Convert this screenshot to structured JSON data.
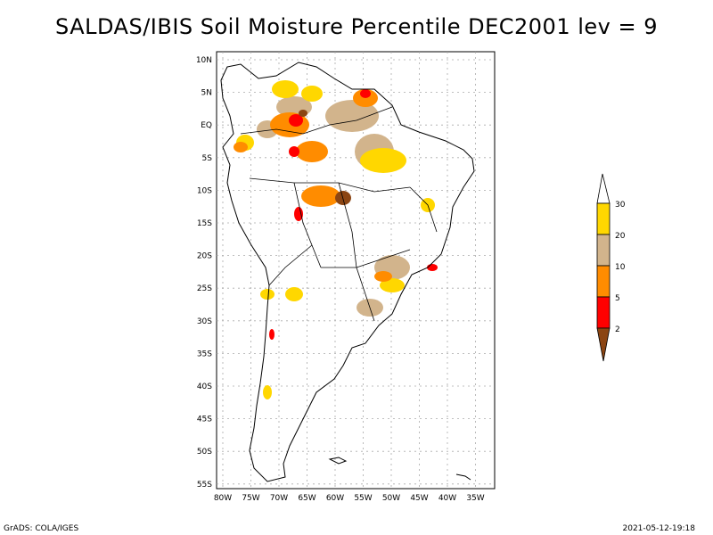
{
  "title": "SALDAS/IBIS Soil Moisture Percentile DEC2001 lev = 9",
  "footer": {
    "left": "GrADS: COLA/IGES",
    "right": "2021-05-12-19:18"
  },
  "axes": {
    "lat_labels": [
      "10N",
      "5N",
      "EQ",
      "5S",
      "10S",
      "15S",
      "20S",
      "25S",
      "30S",
      "35S",
      "40S",
      "45S",
      "50S",
      "55S"
    ],
    "lon_labels": [
      "80W",
      "75W",
      "70W",
      "65W",
      "60W",
      "55W",
      "50W",
      "45W",
      "40W",
      "35W"
    ],
    "grid": true
  },
  "colorbar": {
    "labels": [
      "30",
      "20",
      "10",
      "5",
      "2"
    ],
    "colors": [
      "#ffffff",
      "#ffd700",
      "#d2b48c",
      "#ff8c00",
      "#ff0000",
      "#8b4513"
    ]
  },
  "colors": {
    "brown_lt2": "#8b4513",
    "red_2_5": "#ff0000",
    "orange_5_10": "#ff8c00",
    "tan_10_20": "#d2b48c",
    "gold_20_30": "#ffd700"
  }
}
